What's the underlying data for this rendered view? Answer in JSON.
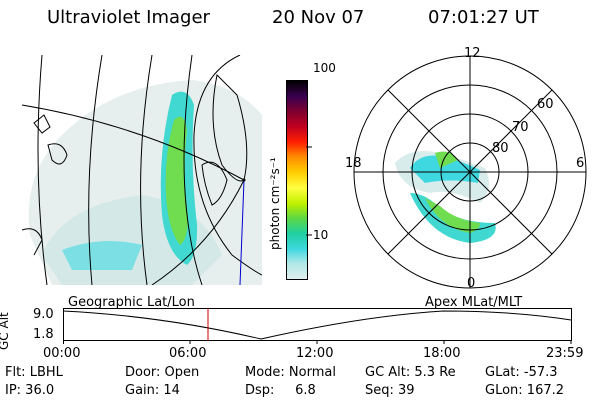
{
  "header": {
    "title": "Ultraviolet Imager",
    "date": "20 Nov 07",
    "time": "07:01:27 UT"
  },
  "colorbar": {
    "unit_label": "photon cm⁻²s⁻¹",
    "tick_labels": [
      "100",
      "10"
    ],
    "colors": [
      "#000000",
      "#3a0050",
      "#7a0030",
      "#c00020",
      "#ff2000",
      "#ff8800",
      "#ffcc00",
      "#ffff40",
      "#c0f000",
      "#60d840",
      "#20d0a0",
      "#40d8e0",
      "#b0e8e8",
      "#e0eeee"
    ]
  },
  "polar_plot": {
    "mlt_labels": {
      "top": "12",
      "left": "18",
      "right": "6",
      "bottom": "0"
    },
    "lat_labels": [
      "60",
      "70",
      "80"
    ]
  },
  "timeline": {
    "left_title": "Geographic Lat/Lon",
    "right_title": "Apex MLat/MLT",
    "y_label": "GC Alt",
    "y_ticks": [
      "9.0",
      "1.8"
    ],
    "x_ticks": [
      "00:00",
      "06:00",
      "12:00",
      "18:00",
      "23:59"
    ],
    "marker_color": "#cc0000"
  },
  "status": {
    "row1": [
      {
        "label": "Flt: LBHL"
      },
      {
        "label": "Door: Open"
      },
      {
        "label": "Mode: Normal"
      },
      {
        "label": "GC Alt: 5.3 Re"
      },
      {
        "label": "GLat: -57.3"
      }
    ],
    "row2": [
      {
        "label": "IP: 36.0"
      },
      {
        "label": "Gain: 14"
      },
      {
        "label": "Dsp:     6.8"
      },
      {
        "label": "Seq: 39"
      },
      {
        "label": "GLon: 167.2"
      }
    ]
  }
}
